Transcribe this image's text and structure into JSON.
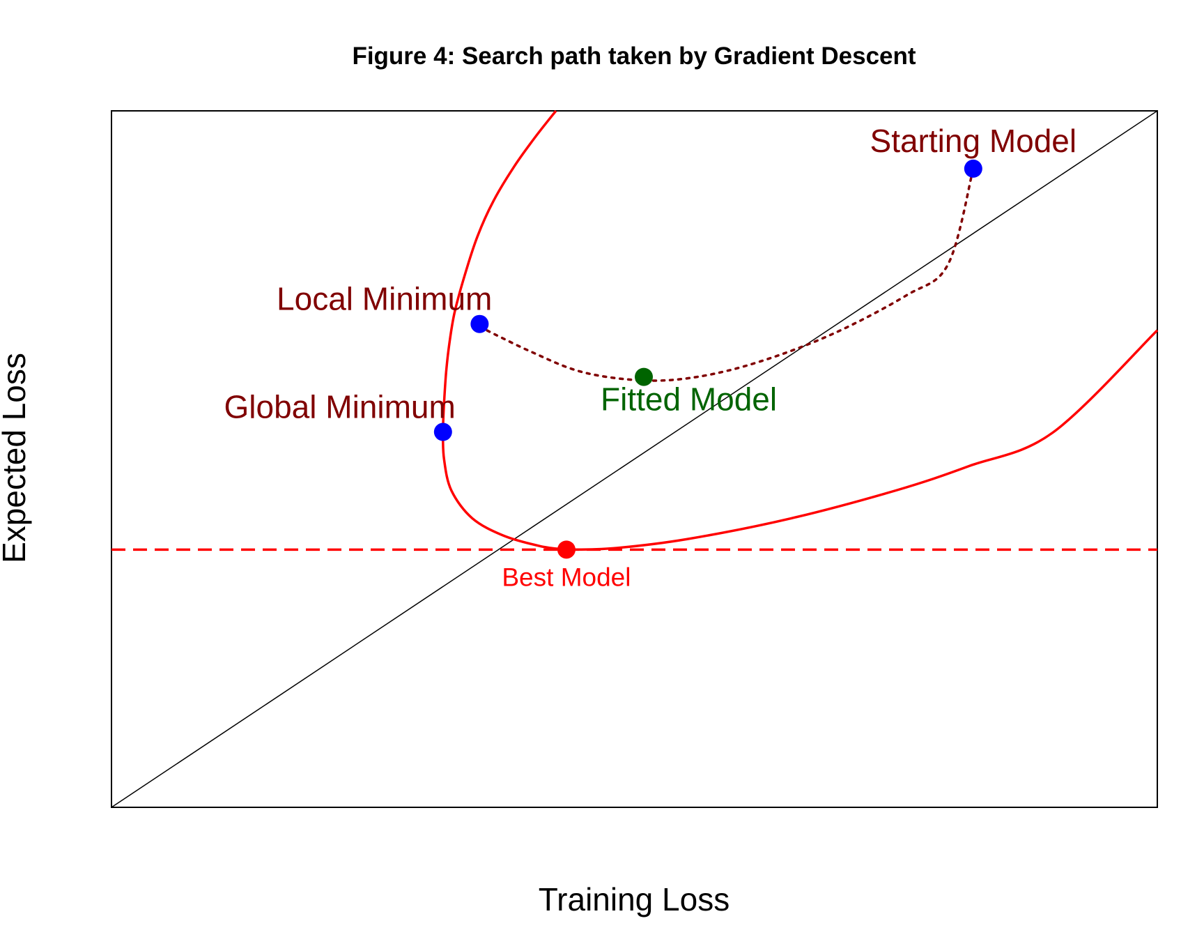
{
  "chart_data": {
    "type": "line",
    "title": "Figure 4: Search path taken by Gradient Descent",
    "xlabel": "Training Loss",
    "ylabel": "Expected Loss",
    "xlim": [
      0,
      1
    ],
    "ylim": [
      0,
      1
    ],
    "axes_ticks": false,
    "grid": false,
    "reference_lines": {
      "diagonal": {
        "from": [
          0,
          0
        ],
        "to": [
          1,
          1
        ],
        "color": "#000000"
      },
      "best_level": {
        "y": 0.37,
        "color": "#ff0000",
        "style": "dashed"
      }
    },
    "loss_curve": {
      "color": "#ff0000",
      "upper_branch": [
        [
          0.425,
          1.0
        ],
        [
          0.405,
          0.962
        ],
        [
          0.385,
          0.92
        ],
        [
          0.365,
          0.87
        ],
        [
          0.35,
          0.82
        ],
        [
          0.338,
          0.765
        ],
        [
          0.328,
          0.71
        ],
        [
          0.323,
          0.665
        ],
        [
          0.32,
          0.625
        ],
        [
          0.318,
          0.58
        ],
        [
          0.317,
          0.54
        ],
        [
          0.318,
          0.5
        ],
        [
          0.325,
          0.455
        ],
        [
          0.345,
          0.415
        ],
        [
          0.375,
          0.39
        ],
        [
          0.41,
          0.375
        ],
        [
          0.435,
          0.37
        ]
      ],
      "lower_branch": [
        [
          0.435,
          0.37
        ],
        [
          0.48,
          0.372
        ],
        [
          0.55,
          0.385
        ],
        [
          0.65,
          0.415
        ],
        [
          0.75,
          0.455
        ],
        [
          0.82,
          0.49
        ],
        [
          0.9,
          0.538
        ],
        [
          1.0,
          0.685
        ]
      ]
    },
    "search_path": {
      "color": "#800000",
      "style": "dotted",
      "points": [
        [
          0.352,
          0.69
        ],
        [
          0.4,
          0.655
        ],
        [
          0.45,
          0.625
        ],
        [
          0.508,
          0.613
        ],
        [
          0.56,
          0.618
        ],
        [
          0.62,
          0.64
        ],
        [
          0.69,
          0.68
        ],
        [
          0.76,
          0.735
        ],
        [
          0.8,
          0.78
        ],
        [
          0.824,
          0.917
        ]
      ]
    },
    "points": [
      {
        "label": "Starting Model",
        "x": 0.824,
        "y": 0.917,
        "color": "#0000ff",
        "label_color": "#800000",
        "label_pos": "above"
      },
      {
        "label": "Local Minimum",
        "x": 0.352,
        "y": 0.694,
        "color": "#0000ff",
        "label_color": "#800000",
        "label_pos": "above-left"
      },
      {
        "label": "Global Minimum",
        "x": 0.317,
        "y": 0.539,
        "color": "#0000ff",
        "label_color": "#800000",
        "label_pos": "above-left"
      },
      {
        "label": "Fitted Model",
        "x": 0.509,
        "y": 0.618,
        "color": "#006400",
        "label_color": "#006400",
        "label_pos": "below-right"
      },
      {
        "label": "Best Model",
        "x": 0.435,
        "y": 0.37,
        "color": "#ff0000",
        "label_color": "#ff0000",
        "label_pos": "below",
        "small": true
      }
    ]
  }
}
